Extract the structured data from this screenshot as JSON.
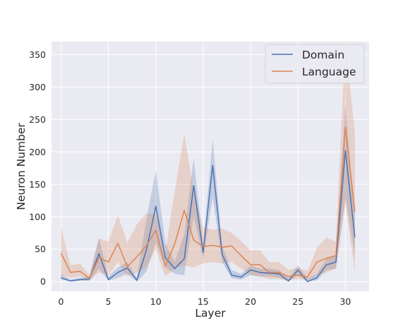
{
  "chart_data": {
    "type": "line",
    "title": "",
    "xlabel": "Layer",
    "ylabel": "Neuron Number",
    "xlim": [
      -1,
      32.5
    ],
    "ylim": [
      -15,
      370
    ],
    "x_ticks": [
      0,
      5,
      10,
      15,
      20,
      25,
      30
    ],
    "y_ticks": [
      0,
      50,
      100,
      150,
      200,
      250,
      300,
      350
    ],
    "grid": true,
    "legend_position": "top-right",
    "series": [
      {
        "name": "Domain",
        "color": "#4c72b0",
        "x": [
          0,
          1,
          2,
          3,
          4,
          5,
          6,
          7,
          8,
          9,
          10,
          11,
          12,
          13,
          14,
          15,
          16,
          17,
          18,
          19,
          20,
          21,
          22,
          23,
          24,
          25,
          26,
          27,
          28,
          29,
          30,
          31
        ],
        "values": [
          6,
          1,
          3,
          4,
          43,
          3,
          14,
          21,
          2,
          48,
          116,
          37,
          20,
          35,
          148,
          45,
          179,
          42,
          10,
          7,
          18,
          14,
          13,
          12,
          1,
          18,
          0,
          6,
          26,
          30,
          202,
          68
        ],
        "upper": [
          12,
          3,
          6,
          8,
          68,
          8,
          22,
          30,
          6,
          95,
          172,
          60,
          30,
          72,
          190,
          58,
          220,
          55,
          18,
          12,
          25,
          20,
          20,
          18,
          5,
          25,
          5,
          12,
          35,
          40,
          272,
          100
        ],
        "lower": [
          3,
          0,
          1,
          1,
          20,
          1,
          6,
          12,
          0,
          15,
          60,
          22,
          12,
          10,
          100,
          35,
          130,
          30,
          5,
          3,
          10,
          8,
          8,
          6,
          0,
          10,
          0,
          2,
          18,
          20,
          130,
          40
        ]
      },
      {
        "name": "Language",
        "color": "#dd8452",
        "x": [
          0,
          1,
          2,
          3,
          4,
          5,
          6,
          7,
          8,
          9,
          10,
          11,
          12,
          13,
          14,
          15,
          16,
          17,
          18,
          19,
          20,
          21,
          22,
          23,
          24,
          25,
          26,
          27,
          28,
          29,
          30,
          31
        ],
        "values": [
          44,
          14,
          16,
          5,
          37,
          30,
          59,
          23,
          38,
          55,
          79,
          24,
          58,
          110,
          64,
          54,
          56,
          53,
          55,
          40,
          26,
          26,
          14,
          14,
          8,
          10,
          7,
          30,
          36,
          40,
          238,
          108
        ],
        "upper": [
          84,
          25,
          28,
          10,
          66,
          62,
          102,
          60,
          88,
          105,
          105,
          45,
          140,
          228,
          140,
          84,
          80,
          82,
          75,
          62,
          48,
          48,
          30,
          30,
          18,
          22,
          16,
          52,
          68,
          62,
          370,
          228
        ],
        "lower": [
          10,
          6,
          8,
          2,
          14,
          10,
          30,
          8,
          14,
          22,
          50,
          8,
          20,
          25,
          22,
          28,
          30,
          28,
          30,
          20,
          10,
          8,
          4,
          4,
          2,
          4,
          2,
          10,
          14,
          20,
          120,
          15
        ]
      }
    ]
  }
}
